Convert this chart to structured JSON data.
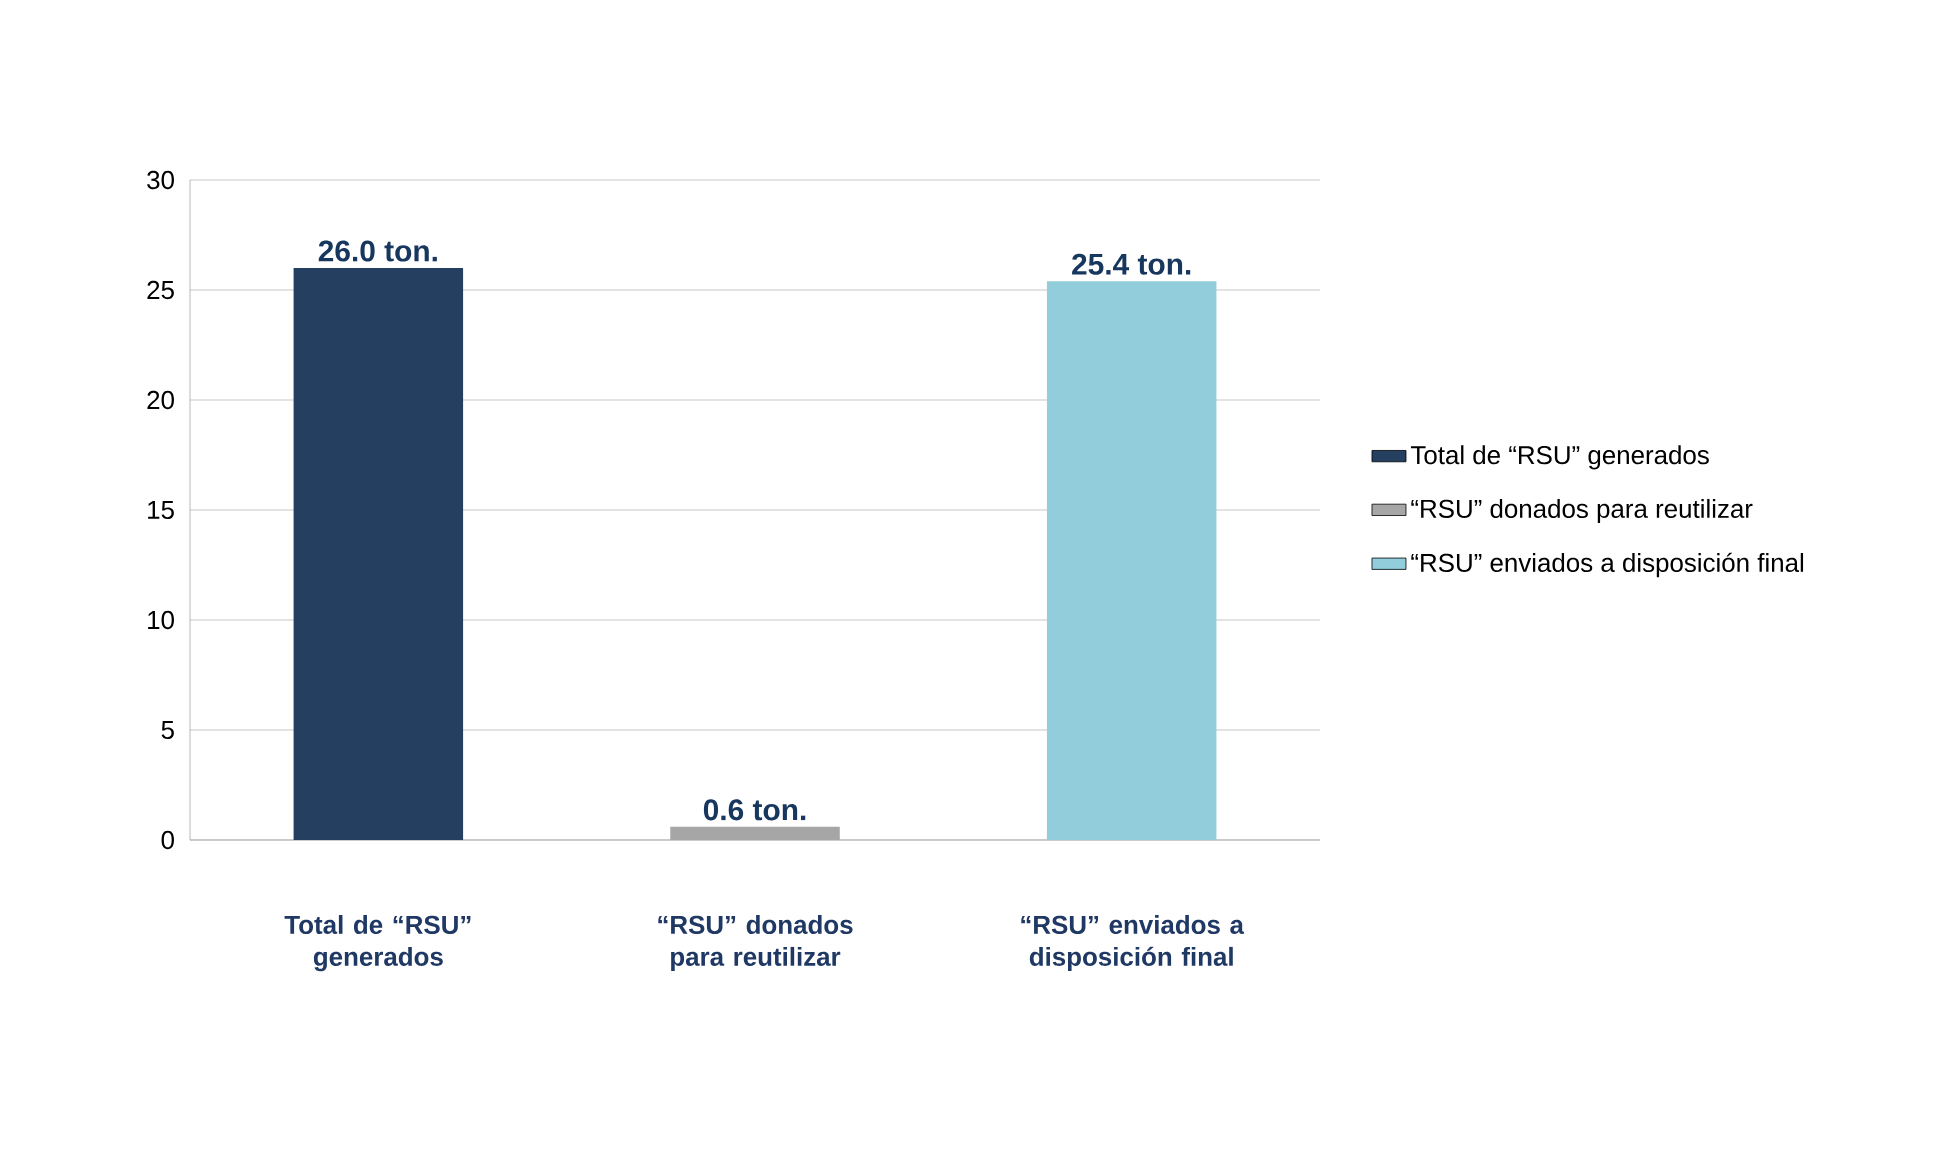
{
  "chart_data": {
    "type": "bar",
    "categories": [
      "Total de “RSU” generados",
      "“RSU” donados para reutilizar",
      "“RSU” enviados a disposición final"
    ],
    "series": [
      {
        "name": "Total de “RSU” generados",
        "color": "#243f60",
        "values": [
          26.0,
          null,
          null
        ],
        "value_labels": [
          "26.0 ton.",
          null,
          null
        ]
      },
      {
        "name": "“RSU” donados para reutilizar",
        "color": "#a6a6a6",
        "values": [
          null,
          0.6,
          null
        ],
        "value_labels": [
          null,
          "0.6 ton.",
          null
        ]
      },
      {
        "name": "“RSU” enviados a disposición final",
        "color": "#92cddc",
        "values": [
          null,
          null,
          25.4
        ],
        "value_labels": [
          null,
          null,
          "25.4 ton."
        ]
      }
    ],
    "ylim": [
      0,
      30
    ],
    "yticks": [
      0,
      5,
      10,
      15,
      20,
      25,
      30
    ],
    "grid": "y",
    "legend": "right"
  }
}
